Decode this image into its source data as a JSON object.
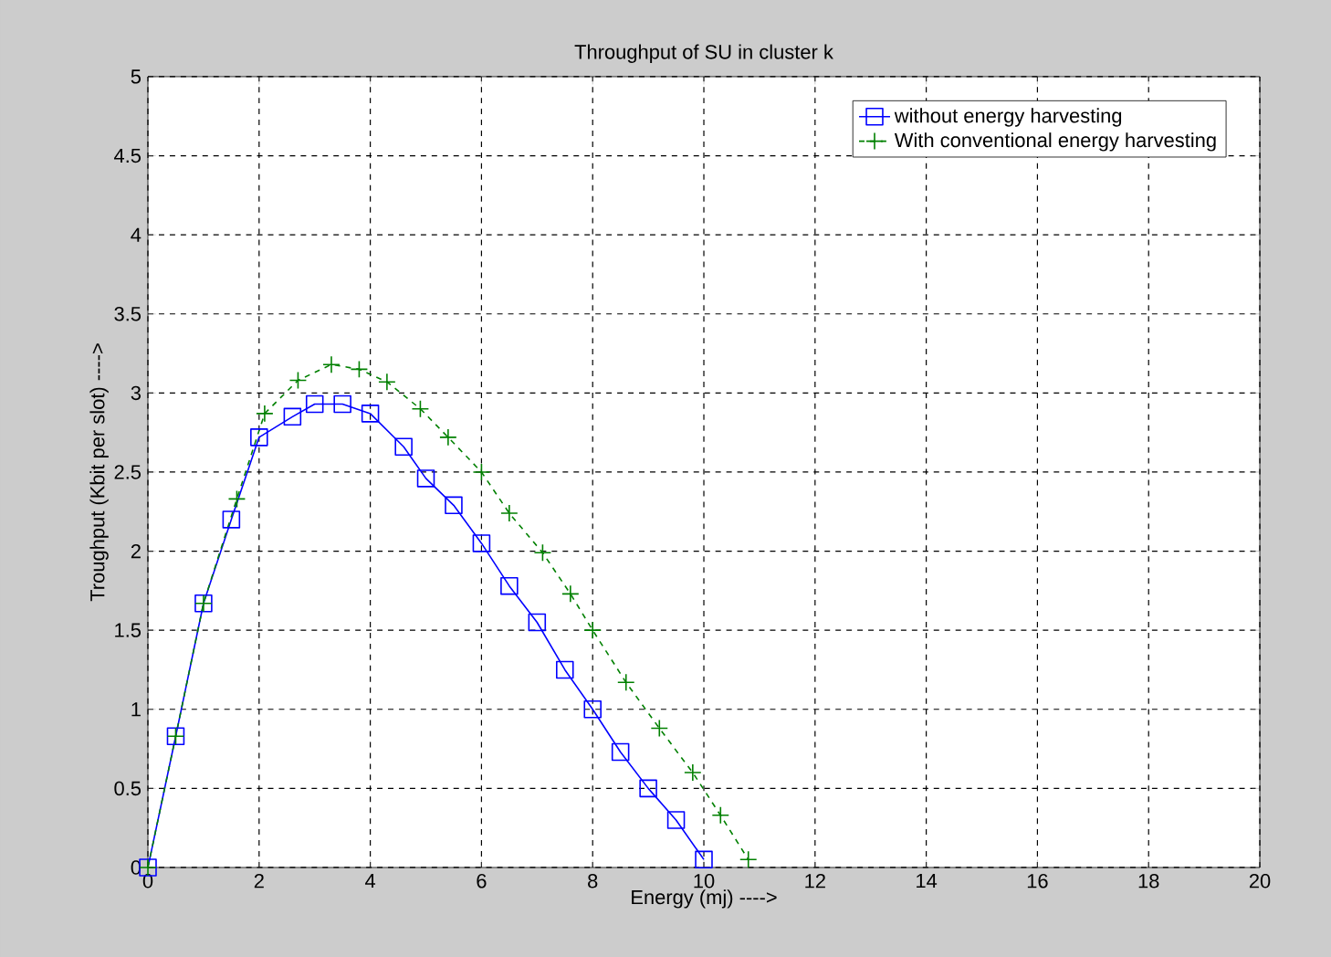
{
  "chart_data": {
    "type": "line",
    "title": "Throughput of SU in cluster k",
    "xlabel": "Energy (mj) ---->",
    "ylabel": "Troughput (Kbit per slot) ---->",
    "xlim": [
      0,
      20
    ],
    "xticks": [
      0,
      2,
      4,
      6,
      8,
      10,
      12,
      14,
      16,
      18,
      20
    ],
    "ylim": [
      0,
      5
    ],
    "yticks": [
      0,
      0.5,
      1,
      1.5,
      2,
      2.5,
      3,
      3.5,
      4,
      4.5,
      5
    ],
    "grid": true,
    "legend": "top right",
    "series": [
      {
        "name": "without energy harvesting",
        "color": "#0000ff",
        "marker": "square",
        "line_style": "solid",
        "x": [
          0,
          0.5,
          1,
          1.5,
          2,
          2.6,
          3,
          3.5,
          4,
          4.6,
          5,
          5.5,
          6,
          6.5,
          7,
          7.5,
          8,
          8.5,
          9,
          9.5,
          10
        ],
        "values": [
          0,
          0.83,
          1.67,
          2.2,
          2.72,
          2.85,
          2.93,
          2.93,
          2.87,
          2.66,
          2.46,
          2.29,
          2.05,
          1.78,
          1.55,
          1.25,
          1.0,
          0.73,
          0.5,
          0.3,
          0.05
        ]
      },
      {
        "name": "With conventional energy harvesting",
        "color": "#008000",
        "marker": "cross",
        "line_style": "dashed",
        "x": [
          0,
          0.5,
          1,
          1.6,
          2.1,
          2.7,
          3.3,
          3.8,
          4.3,
          4.9,
          5.4,
          6,
          6.5,
          7.1,
          7.6,
          8,
          8.6,
          9.2,
          9.8,
          10.3,
          10.8
        ],
        "values": [
          0,
          0.83,
          1.67,
          2.33,
          2.87,
          3.08,
          3.18,
          3.15,
          3.07,
          2.9,
          2.72,
          2.5,
          2.24,
          1.99,
          1.73,
          1.5,
          1.17,
          0.88,
          0.6,
          0.33,
          0.05
        ]
      }
    ]
  }
}
